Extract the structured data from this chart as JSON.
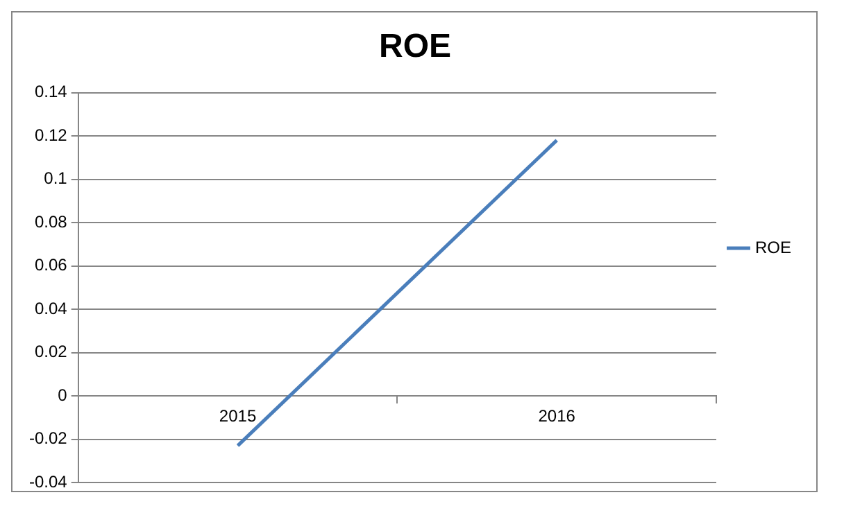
{
  "chart_data": {
    "type": "line",
    "title": "ROE",
    "categories": [
      "2015",
      "2016"
    ],
    "series": [
      {
        "name": "ROE",
        "color": "#4a7ebb",
        "values": [
          -0.023,
          0.118
        ]
      }
    ],
    "ylim": [
      -0.04,
      0.14
    ],
    "yticks": [
      -0.04,
      -0.02,
      0,
      0.02,
      0.04,
      0.06,
      0.08,
      0.1,
      0.12,
      0.14
    ],
    "grid": "y",
    "legend": "right",
    "marker": "none",
    "line_style": "solid"
  }
}
